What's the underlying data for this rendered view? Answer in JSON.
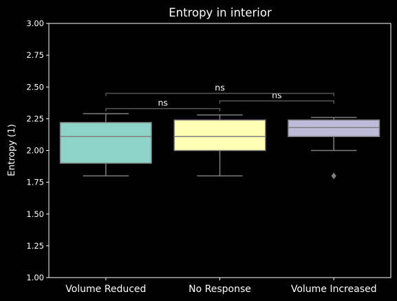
{
  "chart_data": {
    "type": "box",
    "title": "Entropy in interior",
    "xlabel": "",
    "ylabel": "Entropy (1)",
    "ylim": [
      1.0,
      3.0
    ],
    "yticks": [
      "1.00",
      "1.25",
      "1.50",
      "1.75",
      "2.00",
      "2.25",
      "2.50",
      "2.75",
      "3.00"
    ],
    "grid": false,
    "categories": [
      "Volume Reduced",
      "No Response",
      "Volume Increased"
    ],
    "boxes": [
      {
        "name": "Volume Reduced",
        "whisker_low": 1.8,
        "q1": 1.9,
        "median": 2.11,
        "q3": 2.22,
        "whisker_high": 2.29,
        "outliers": [],
        "color": "#8dd3c7"
      },
      {
        "name": "No Response",
        "whisker_low": 1.8,
        "q1": 2.0,
        "median": 2.11,
        "q3": 2.24,
        "whisker_high": 2.28,
        "outliers": [],
        "color": "#ffffb3"
      },
      {
        "name": "Volume Increased",
        "whisker_low": 2.0,
        "q1": 2.11,
        "median": 2.18,
        "q3": 2.24,
        "whisker_high": 2.26,
        "outliers": [
          1.8
        ],
        "color": "#bebada"
      }
    ],
    "annotations": [
      {
        "from": 0,
        "to": 1,
        "y": 2.33,
        "text": "ns"
      },
      {
        "from": 1,
        "to": 2,
        "y": 2.39,
        "text": "ns"
      },
      {
        "from": 0,
        "to": 2,
        "y": 2.45,
        "text": "ns"
      }
    ]
  },
  "colors": {
    "background": "#000000",
    "foreground": "#ffffff",
    "box_edge": "#7f7f7f",
    "bracket": "#595959"
  }
}
